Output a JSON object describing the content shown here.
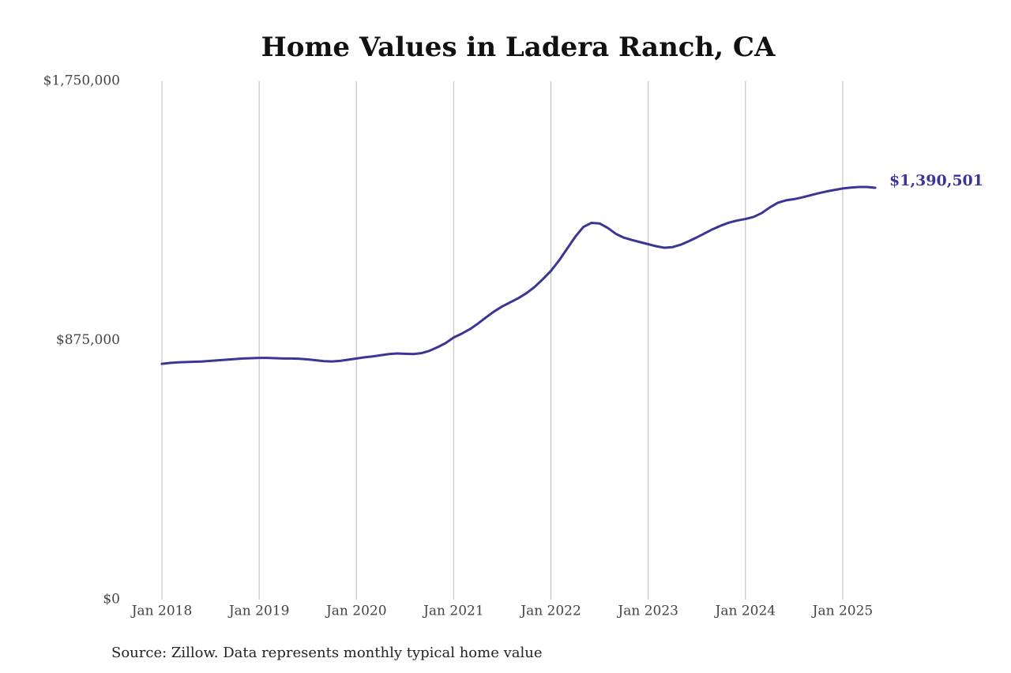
{
  "chart_data": {
    "type": "line",
    "title": "Home Values in Ladera Ranch, CA",
    "source": "Source: Zillow. Data represents monthly typical home value",
    "x": [
      "2018-01",
      "2018-02",
      "2018-03",
      "2018-04",
      "2018-05",
      "2018-06",
      "2018-07",
      "2018-08",
      "2018-09",
      "2018-10",
      "2018-11",
      "2018-12",
      "2019-01",
      "2019-02",
      "2019-03",
      "2019-04",
      "2019-05",
      "2019-06",
      "2019-07",
      "2019-08",
      "2019-09",
      "2019-10",
      "2019-11",
      "2019-12",
      "2020-01",
      "2020-02",
      "2020-03",
      "2020-04",
      "2020-05",
      "2020-06",
      "2020-07",
      "2020-08",
      "2020-09",
      "2020-10",
      "2020-11",
      "2020-12",
      "2021-01",
      "2021-02",
      "2021-03",
      "2021-04",
      "2021-05",
      "2021-06",
      "2021-07",
      "2021-08",
      "2021-09",
      "2021-10",
      "2021-11",
      "2021-12",
      "2022-01",
      "2022-02",
      "2022-03",
      "2022-04",
      "2022-05",
      "2022-06",
      "2022-07",
      "2022-08",
      "2022-09",
      "2022-10",
      "2022-11",
      "2022-12",
      "2023-01",
      "2023-02",
      "2023-03",
      "2023-04",
      "2023-05",
      "2023-06",
      "2023-07",
      "2023-08",
      "2023-09",
      "2023-10",
      "2023-11",
      "2023-12",
      "2024-01",
      "2024-02",
      "2024-03",
      "2024-04",
      "2024-05",
      "2024-06",
      "2024-07",
      "2024-08",
      "2024-09",
      "2024-10",
      "2024-11",
      "2024-12",
      "2025-01",
      "2025-02",
      "2025-03",
      "2025-04",
      "2025-05"
    ],
    "series": [
      {
        "name": "Typical home value",
        "color": "#3b3596",
        "values": [
          796000,
          799000,
          801000,
          802000,
          803000,
          804000,
          806000,
          808000,
          810000,
          812000,
          814000,
          815000,
          816000,
          816000,
          815000,
          814000,
          814000,
          813000,
          811000,
          808000,
          805000,
          804000,
          806000,
          810000,
          814000,
          818000,
          821000,
          825000,
          829000,
          831000,
          830000,
          829000,
          832000,
          840000,
          852000,
          866000,
          885000,
          898000,
          913000,
          932000,
          953000,
          973000,
          990000,
          1004000,
          1018000,
          1035000,
          1056000,
          1082000,
          1110000,
          1145000,
          1185000,
          1225000,
          1258000,
          1272000,
          1270000,
          1255000,
          1235000,
          1222000,
          1214000,
          1207000,
          1200000,
          1193000,
          1188000,
          1190000,
          1198000,
          1210000,
          1223000,
          1237000,
          1251000,
          1263000,
          1273000,
          1280000,
          1285000,
          1292000,
          1305000,
          1324000,
          1340000,
          1348000,
          1352000,
          1358000,
          1365000,
          1372000,
          1378000,
          1383000,
          1388000,
          1391000,
          1393000,
          1393000,
          1390501
        ],
        "value_labels": [
          null,
          null,
          null,
          null,
          null,
          null,
          null,
          null,
          null,
          null,
          null,
          null,
          null,
          null,
          null,
          null,
          null,
          null,
          null,
          null,
          null,
          null,
          null,
          null,
          null,
          null,
          null,
          null,
          null,
          null,
          null,
          null,
          null,
          null,
          null,
          null,
          null,
          null,
          null,
          null,
          null,
          null,
          null,
          null,
          null,
          null,
          null,
          null,
          null,
          null,
          null,
          null,
          null,
          null,
          null,
          null,
          null,
          null,
          null,
          null,
          null,
          null,
          null,
          null,
          null,
          null,
          null,
          null,
          null,
          null,
          null,
          null,
          null,
          null,
          null,
          null,
          null,
          null,
          null,
          null,
          null,
          null,
          null,
          null,
          null,
          null,
          null,
          null,
          "$1,390,501"
        ]
      }
    ],
    "xlim": [
      "2018-01",
      "2025-05"
    ],
    "xticks": [
      {
        "value": "2018-01",
        "label": "Jan 2018"
      },
      {
        "value": "2019-01",
        "label": "Jan 2019"
      },
      {
        "value": "2020-01",
        "label": "Jan 2020"
      },
      {
        "value": "2021-01",
        "label": "Jan 2021"
      },
      {
        "value": "2022-01",
        "label": "Jan 2022"
      },
      {
        "value": "2023-01",
        "label": "Jan 2023"
      },
      {
        "value": "2024-01",
        "label": "Jan 2024"
      },
      {
        "value": "2025-01",
        "label": "Jan 2025"
      }
    ],
    "ylim": [
      0,
      1750000
    ],
    "yticks": [
      {
        "value": 0,
        "label": "$0"
      },
      {
        "value": 875000,
        "label": "$875,000"
      },
      {
        "value": 1750000,
        "label": "$1,750,000"
      }
    ],
    "grid": "x"
  }
}
